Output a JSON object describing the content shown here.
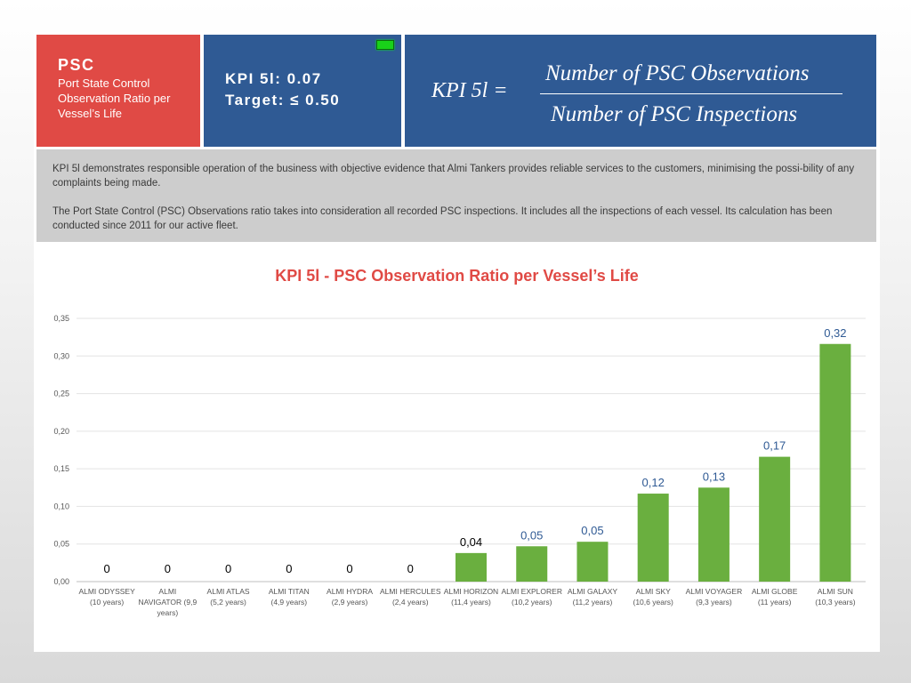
{
  "header": {
    "psc_title": "PSC",
    "psc_subtitle": "Port State Control Observation Ratio per Vessel’s Life",
    "kpi_value": "KPI 5l: 0.07",
    "target": "Target: ≤ 0.50",
    "formula_lhs": "KPI 5l =",
    "formula_numerator": "Number of PSC Observations",
    "formula_denominator": "Number of PSC Inspections"
  },
  "description": {
    "p1": "KPI 5l demonstrates responsible operation of the business with objective evidence that Almi Tankers provides reliable services to the customers, minimising the possi-bility of any complaints being made.",
    "p2": "The Port State Control (PSC) Observations ratio takes into consideration all recorded PSC inspections. It includes all the inspections of each vessel. Its calculation has been conducted since 2011 for our active fleet."
  },
  "colors": {
    "red": "#e04a45",
    "blue": "#2f5a94",
    "bar": "#6aaf3f",
    "led": "#19d119"
  },
  "chart_data": {
    "type": "bar",
    "title": "KPI 5l - PSC Observation Ratio per Vessel’s Life",
    "categories": [
      [
        "ALMI ODYSSEY",
        "(10 years)"
      ],
      [
        "ALMI",
        "NAVIGATOR (9,9",
        "years)"
      ],
      [
        "ALMI ATLAS",
        "(5,2 years)"
      ],
      [
        "ALMI TITAN",
        "(4,9 years)"
      ],
      [
        "ALMI HYDRA",
        "(2,9 years)"
      ],
      [
        "ALMI HERCULES",
        "(2,4 years)"
      ],
      [
        "ALMI HORIZON",
        "(11,4 years)"
      ],
      [
        "ALMI EXPLORER",
        "(10,2 years)"
      ],
      [
        "ALMI GALAXY",
        "(11,2 years)"
      ],
      [
        "ALMI SKY",
        "(10,6 years)"
      ],
      [
        "ALMI VOYAGER",
        "(9,3 years)"
      ],
      [
        "ALMI GLOBE",
        "(11 years)"
      ],
      [
        "ALMI SUN",
        "(10,3 years)"
      ]
    ],
    "values": [
      0,
      0,
      0,
      0,
      0,
      0,
      0.038,
      0.047,
      0.053,
      0.117,
      0.125,
      0.166,
      0.316
    ],
    "data_labels": [
      "0",
      "0",
      "0",
      "0",
      "0",
      "0",
      "0,04",
      "0,05",
      "0,05",
      "0,12",
      "0,13",
      "0,17",
      "0,32"
    ],
    "yticks": [
      "0,00",
      "0,05",
      "0,10",
      "0,15",
      "0,20",
      "0,25",
      "0,30",
      "0,35"
    ],
    "ylim": [
      0,
      0.35
    ],
    "grid": true,
    "legend": "none"
  }
}
